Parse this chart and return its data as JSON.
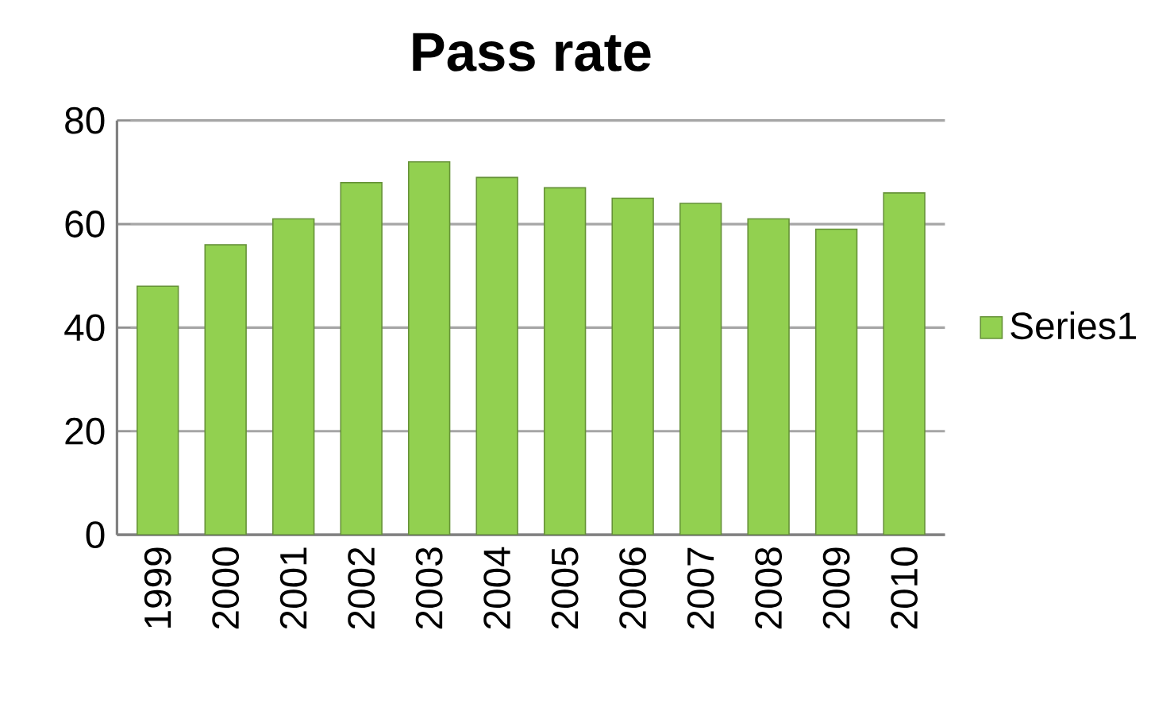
{
  "chart_data": {
    "type": "bar",
    "title": "Pass rate",
    "categories": [
      "1999",
      "2000",
      "2001",
      "2002",
      "2003",
      "2004",
      "2005",
      "2006",
      "2007",
      "2008",
      "2009",
      "2010"
    ],
    "series": [
      {
        "name": "Series1",
        "color": "#92d050",
        "values": [
          48,
          56,
          61,
          68,
          72,
          69,
          67,
          65,
          64,
          61,
          59,
          66
        ]
      }
    ],
    "ylim": [
      0,
      80
    ],
    "yticks": [
      0,
      20,
      40,
      60,
      80
    ],
    "grid": "y",
    "legend": "right"
  }
}
